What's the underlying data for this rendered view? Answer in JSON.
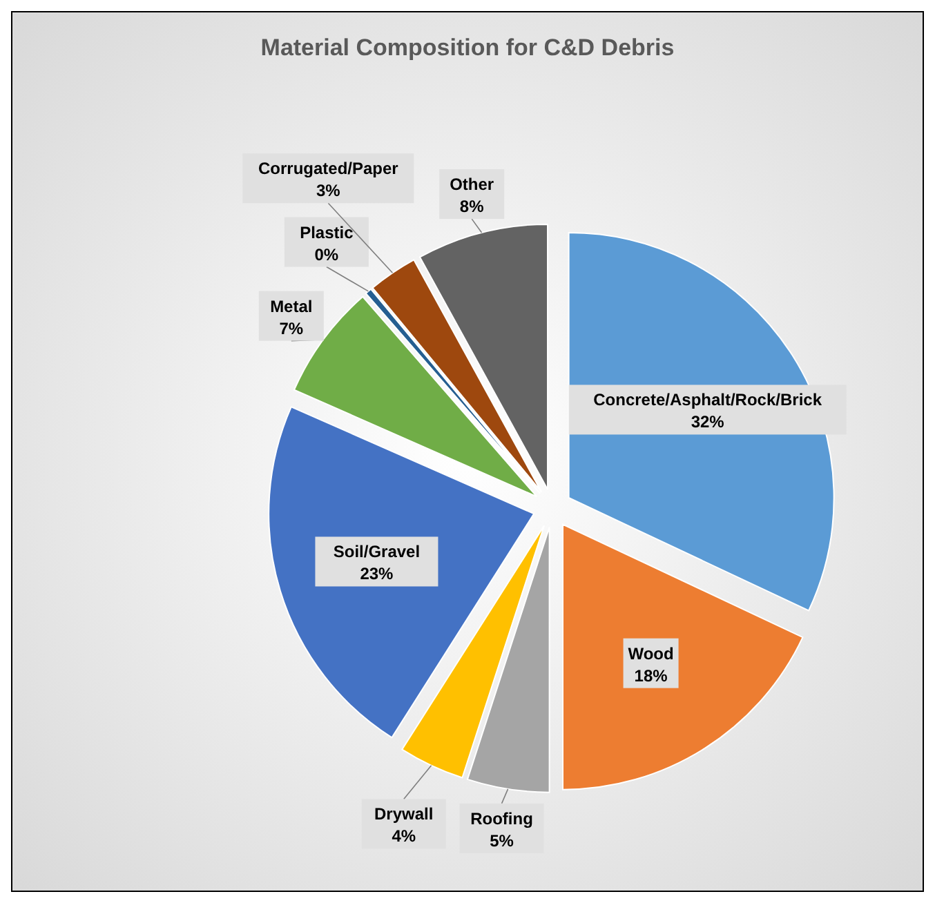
{
  "chart_data": {
    "type": "pie",
    "title": "Material Composition for C&D Debris",
    "categories": [
      "Concrete/Asphalt/Rock/Brick",
      "Wood",
      "Roofing",
      "Drywall",
      "Soil/Gravel",
      "Metal",
      "Plastic",
      "Corrugated/Paper",
      "Other"
    ],
    "values": [
      32,
      18,
      5,
      4,
      22.6,
      7,
      0.4,
      3,
      8
    ],
    "value_labels": [
      "32%",
      "18%",
      "5%",
      "4%",
      "23%",
      "7%",
      "0%",
      "3%",
      "8%"
    ],
    "colors": [
      "#5b9bd5",
      "#ed7d31",
      "#a5a5a5",
      "#ffc000",
      "#4472c4",
      "#70ad47",
      "#255e91",
      "#9e480e",
      "#636363"
    ],
    "legend": false
  }
}
